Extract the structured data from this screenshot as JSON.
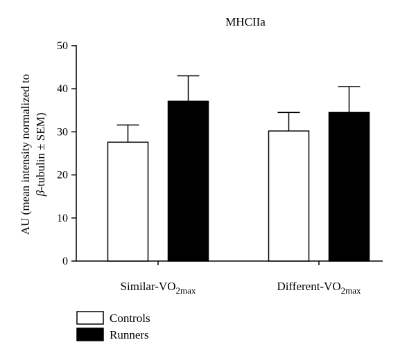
{
  "chart_data": {
    "type": "bar",
    "title": "MHCIIa",
    "ylabel_line1": "AU (mean intensity normalized to",
    "ylabel_line2_greek": "β",
    "ylabel_line2_rest": "-tubulin ± SEM)",
    "ylim": [
      0,
      50
    ],
    "yticks": [
      0,
      10,
      20,
      30,
      40,
      50
    ],
    "categories": [
      {
        "base": "Similar-VO",
        "sub": "2max"
      },
      {
        "base": "Different-VO",
        "sub": "2max"
      }
    ],
    "series": [
      {
        "name": "Controls",
        "fill": "#ffffff",
        "values": [
          27.6,
          30.2
        ],
        "errors": [
          4.0,
          4.3
        ]
      },
      {
        "name": "Runners",
        "fill": "#000000",
        "values": [
          37.1,
          34.5
        ],
        "errors": [
          5.9,
          6.0
        ]
      }
    ],
    "legend_position": "bottom-left",
    "grid": false
  }
}
